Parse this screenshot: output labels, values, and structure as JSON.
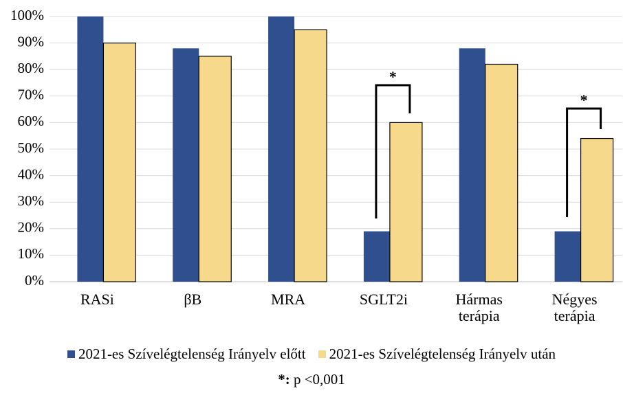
{
  "chart_data": {
    "type": "bar",
    "categories": [
      "RASi",
      "βB",
      "MRA",
      "SGLT2i",
      "Hármas terápia",
      "Négyes terápia"
    ],
    "series": [
      {
        "name": "2021-es Szívelégtelenség Irányelv előtt",
        "color": "#2f4f8f",
        "values": [
          100,
          88,
          100,
          19,
          88,
          19
        ]
      },
      {
        "name": "2021-es Szívelégtelenség Irányelv után",
        "color": "#f7d98c",
        "values": [
          90,
          85,
          95,
          60,
          82,
          54
        ]
      }
    ],
    "ylim": [
      0,
      100
    ],
    "yticks": [
      {
        "value": 0,
        "label": "0%"
      },
      {
        "value": 10,
        "label": "10%"
      },
      {
        "value": 20,
        "label": "20%"
      },
      {
        "value": 30,
        "label": "30%"
      },
      {
        "value": 40,
        "label": "40%"
      },
      {
        "value": 50,
        "label": "50%"
      },
      {
        "value": 60,
        "label": "60%"
      },
      {
        "value": 70,
        "label": "70%"
      },
      {
        "value": 80,
        "label": "80%"
      },
      {
        "value": 90,
        "label": "90%"
      },
      {
        "value": 100,
        "label": "100%"
      }
    ],
    "grid": true,
    "significance_markers": [
      "*",
      "*"
    ],
    "footnote": {
      "symbol": "*:",
      "text": "p <0,001"
    }
  }
}
